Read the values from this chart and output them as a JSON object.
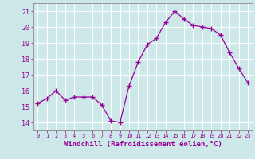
{
  "x": [
    0,
    1,
    2,
    3,
    4,
    5,
    6,
    7,
    8,
    9,
    10,
    11,
    12,
    13,
    14,
    15,
    16,
    17,
    18,
    19,
    20,
    21,
    22,
    23
  ],
  "y": [
    15.2,
    15.5,
    16.0,
    15.4,
    15.6,
    15.6,
    15.6,
    15.1,
    14.1,
    14.0,
    16.3,
    17.8,
    18.9,
    19.3,
    20.3,
    21.0,
    20.5,
    20.1,
    20.0,
    19.9,
    19.5,
    18.4,
    17.4,
    16.5
  ],
  "xlim": [
    -0.5,
    23.5
  ],
  "ylim": [
    13.5,
    21.5
  ],
  "yticks": [
    14,
    15,
    16,
    17,
    18,
    19,
    20,
    21
  ],
  "xticks": [
    0,
    1,
    2,
    3,
    4,
    5,
    6,
    7,
    8,
    9,
    10,
    11,
    12,
    13,
    14,
    15,
    16,
    17,
    18,
    19,
    20,
    21,
    22,
    23
  ],
  "xlabel": "Windchill (Refroidissement éolien,°C)",
  "line_color": "#990099",
  "marker": "+",
  "bg_color": "#cce8e8",
  "grid_color": "#ffffff",
  "tick_color": "#990099",
  "label_color": "#990099",
  "spine_color": "#888888",
  "xtick_fontsize": 5.0,
  "ytick_fontsize": 6.0,
  "xlabel_fontsize": 6.5
}
